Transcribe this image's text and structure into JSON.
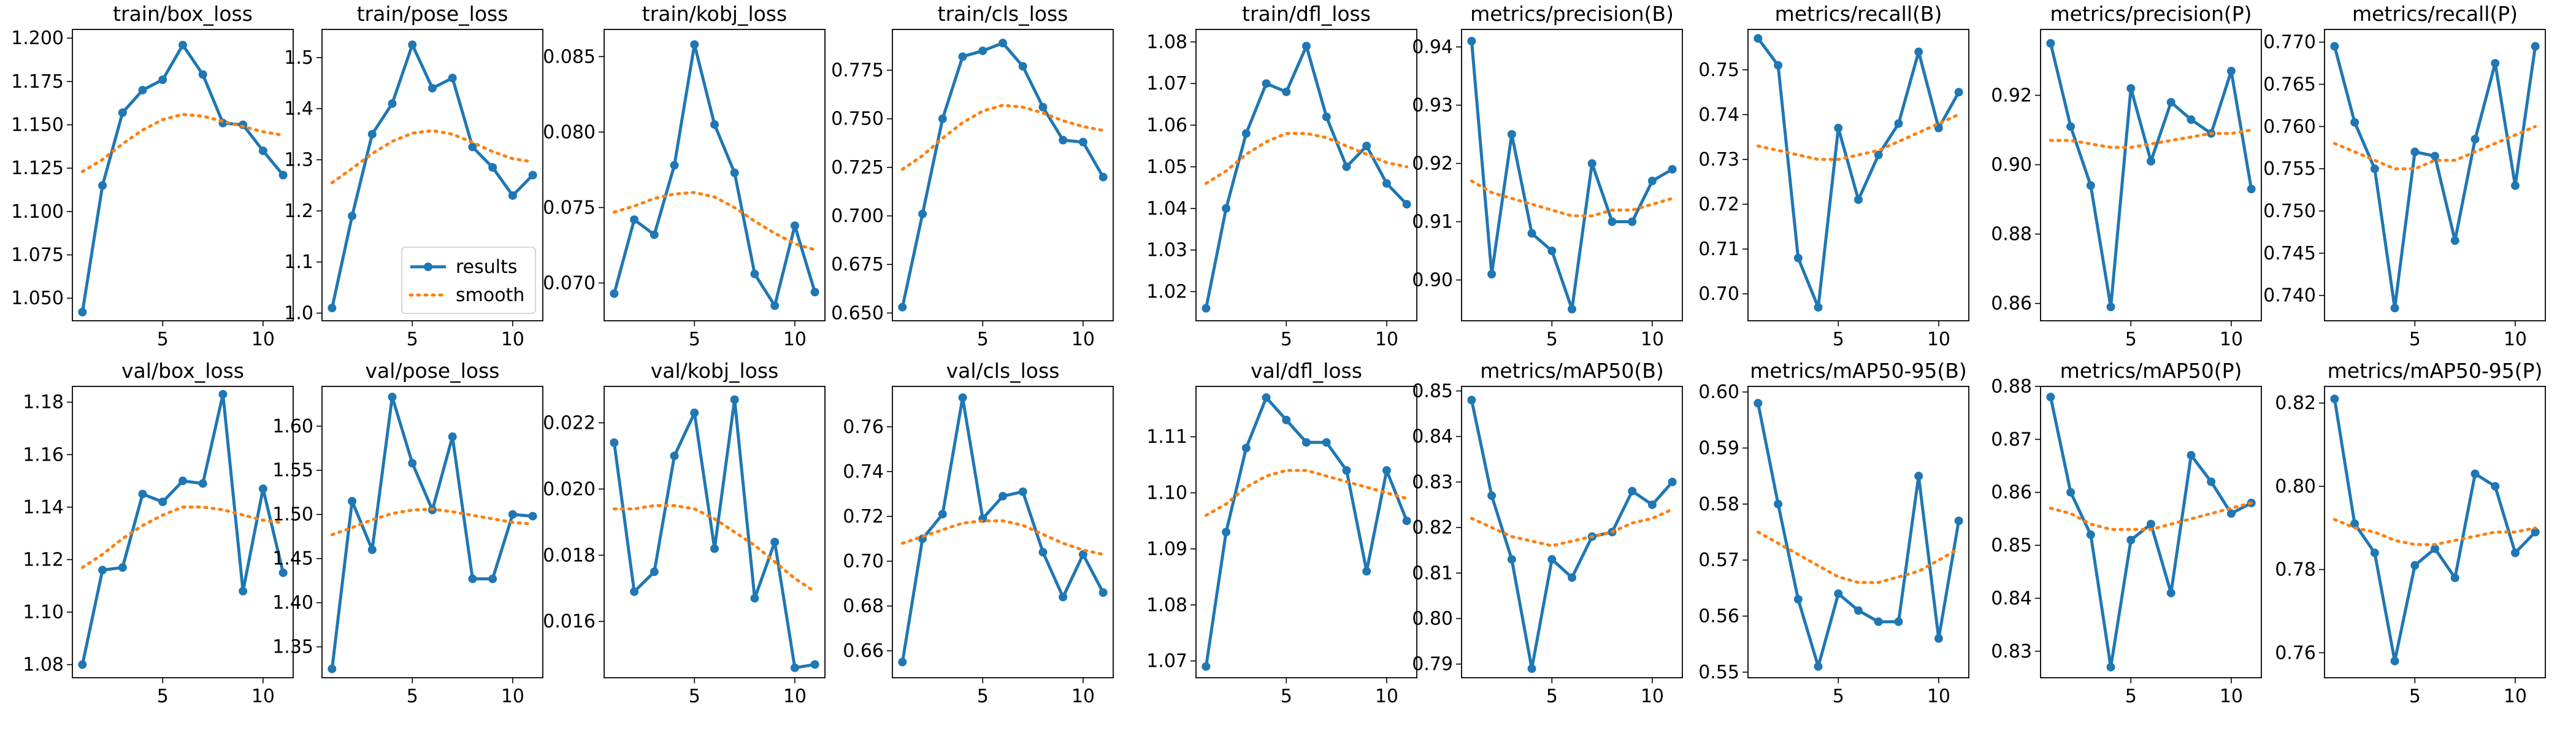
{
  "colors": {
    "results": "#1f77b4",
    "smooth": "#ff7f0e"
  },
  "legend": {
    "panel": "train/pose_loss",
    "placement": "lower-right",
    "items": [
      "results",
      "smooth"
    ]
  },
  "chart_data": [
    {
      "type": "line",
      "title": "train/box_loss",
      "x": [
        1,
        2,
        3,
        4,
        5,
        6,
        7,
        8,
        9,
        10,
        11
      ],
      "series": [
        {
          "name": "results",
          "values": [
            1.042,
            1.115,
            1.157,
            1.17,
            1.176,
            1.196,
            1.179,
            1.151,
            1.15,
            1.135,
            1.121
          ]
        },
        {
          "name": "smooth",
          "values": [
            1.123,
            1.13,
            1.139,
            1.147,
            1.153,
            1.156,
            1.155,
            1.152,
            1.149,
            1.146,
            1.144
          ]
        }
      ],
      "xticks": [
        5,
        10
      ],
      "yticks": [
        "1.050",
        "1.075",
        "1.100",
        "1.125",
        "1.150",
        "1.175",
        "1.200"
      ],
      "ylim": [
        1.037,
        1.205
      ]
    },
    {
      "type": "line",
      "title": "train/pose_loss",
      "x": [
        1,
        2,
        3,
        4,
        5,
        6,
        7,
        8,
        9,
        10,
        11
      ],
      "series": [
        {
          "name": "results",
          "values": [
            1.01,
            1.19,
            1.35,
            1.41,
            1.525,
            1.44,
            1.46,
            1.325,
            1.285,
            1.23,
            1.27
          ]
        },
        {
          "name": "smooth",
          "values": [
            1.255,
            1.283,
            1.312,
            1.336,
            1.352,
            1.357,
            1.35,
            1.334,
            1.316,
            1.302,
            1.296
          ]
        }
      ],
      "xticks": [
        5,
        10
      ],
      "yticks": [
        "1.0",
        "1.1",
        "1.2",
        "1.3",
        "1.4",
        "1.5"
      ],
      "ylim": [
        0.985,
        1.555
      ]
    },
    {
      "type": "line",
      "title": "train/kobj_loss",
      "x": [
        1,
        2,
        3,
        4,
        5,
        6,
        7,
        8,
        9,
        10,
        11
      ],
      "series": [
        {
          "name": "results",
          "values": [
            0.0693,
            0.0742,
            0.0732,
            0.0778,
            0.0858,
            0.0805,
            0.0773,
            0.0706,
            0.0685,
            0.0738,
            0.0694
          ]
        },
        {
          "name": "smooth",
          "values": [
            0.0747,
            0.0751,
            0.0756,
            0.0759,
            0.076,
            0.0757,
            0.075,
            0.0741,
            0.0733,
            0.0726,
            0.0722
          ]
        }
      ],
      "xticks": [
        5,
        10
      ],
      "yticks": [
        "0.070",
        "0.075",
        "0.080",
        "0.085"
      ],
      "ylim": [
        0.0675,
        0.0868
      ]
    },
    {
      "type": "line",
      "title": "train/cls_loss",
      "x": [
        1,
        2,
        3,
        4,
        5,
        6,
        7,
        8,
        9,
        10,
        11
      ],
      "series": [
        {
          "name": "results",
          "values": [
            0.653,
            0.701,
            0.75,
            0.782,
            0.785,
            0.789,
            0.777,
            0.756,
            0.739,
            0.738,
            0.72
          ]
        },
        {
          "name": "smooth",
          "values": [
            0.724,
            0.731,
            0.74,
            0.748,
            0.754,
            0.757,
            0.756,
            0.753,
            0.749,
            0.746,
            0.744
          ]
        }
      ],
      "xticks": [
        5,
        10
      ],
      "yticks": [
        "0.650",
        "0.675",
        "0.700",
        "0.725",
        "0.750",
        "0.775"
      ],
      "ylim": [
        0.646,
        0.796
      ]
    },
    {
      "type": "line",
      "title": "train/dfl_loss",
      "x": [
        1,
        2,
        3,
        4,
        5,
        6,
        7,
        8,
        9,
        10,
        11
      ],
      "series": [
        {
          "name": "results",
          "values": [
            1.016,
            1.04,
            1.058,
            1.07,
            1.068,
            1.079,
            1.062,
            1.05,
            1.055,
            1.046,
            1.041
          ]
        },
        {
          "name": "smooth",
          "values": [
            1.046,
            1.049,
            1.053,
            1.056,
            1.058,
            1.058,
            1.057,
            1.055,
            1.053,
            1.051,
            1.05
          ]
        }
      ],
      "xticks": [
        5,
        10
      ],
      "yticks": [
        "1.02",
        "1.03",
        "1.04",
        "1.05",
        "1.06",
        "1.07",
        "1.08"
      ],
      "ylim": [
        1.013,
        1.083
      ]
    },
    {
      "type": "line",
      "title": "metrics/precision(B)",
      "x": [
        1,
        2,
        3,
        4,
        5,
        6,
        7,
        8,
        9,
        10,
        11
      ],
      "series": [
        {
          "name": "results",
          "values": [
            0.941,
            0.901,
            0.925,
            0.908,
            0.905,
            0.895,
            0.92,
            0.91,
            0.91,
            0.917,
            0.919
          ]
        },
        {
          "name": "smooth",
          "values": [
            0.917,
            0.915,
            0.914,
            0.913,
            0.912,
            0.911,
            0.911,
            0.912,
            0.912,
            0.913,
            0.914
          ]
        }
      ],
      "xticks": [
        5,
        10
      ],
      "yticks": [
        "0.90",
        "0.91",
        "0.92",
        "0.93",
        "0.94"
      ],
      "ylim": [
        0.893,
        0.943
      ]
    },
    {
      "type": "line",
      "title": "metrics/recall(B)",
      "x": [
        1,
        2,
        3,
        4,
        5,
        6,
        7,
        8,
        9,
        10,
        11
      ],
      "series": [
        {
          "name": "results",
          "values": [
            0.757,
            0.751,
            0.708,
            0.697,
            0.737,
            0.721,
            0.731,
            0.738,
            0.754,
            0.737,
            0.745
          ]
        },
        {
          "name": "smooth",
          "values": [
            0.733,
            0.732,
            0.731,
            0.73,
            0.73,
            0.731,
            0.732,
            0.734,
            0.736,
            0.738,
            0.74
          ]
        }
      ],
      "xticks": [
        5,
        10
      ],
      "yticks": [
        "0.70",
        "0.71",
        "0.72",
        "0.73",
        "0.74",
        "0.75"
      ],
      "ylim": [
        0.694,
        0.759
      ]
    },
    {
      "type": "line",
      "title": "metrics/precision(P)",
      "x": [
        1,
        2,
        3,
        4,
        5,
        6,
        7,
        8,
        9,
        10,
        11
      ],
      "series": [
        {
          "name": "results",
          "values": [
            0.935,
            0.911,
            0.894,
            0.859,
            0.922,
            0.901,
            0.918,
            0.913,
            0.909,
            0.927,
            0.893
          ]
        },
        {
          "name": "smooth",
          "values": [
            0.907,
            0.907,
            0.906,
            0.905,
            0.905,
            0.906,
            0.907,
            0.908,
            0.909,
            0.909,
            0.91
          ]
        }
      ],
      "xticks": [
        5,
        10
      ],
      "yticks": [
        "0.86",
        "0.88",
        "0.90",
        "0.92"
      ],
      "ylim": [
        0.855,
        0.939
      ]
    },
    {
      "type": "line",
      "title": "metrics/recall(P)",
      "x": [
        1,
        2,
        3,
        4,
        5,
        6,
        7,
        8,
        9,
        10,
        11
      ],
      "series": [
        {
          "name": "results",
          "values": [
            0.7695,
            0.7605,
            0.755,
            0.7385,
            0.757,
            0.7565,
            0.7465,
            0.7585,
            0.7675,
            0.753,
            0.7695
          ]
        },
        {
          "name": "smooth",
          "values": [
            0.758,
            0.757,
            0.756,
            0.755,
            0.755,
            0.756,
            0.756,
            0.757,
            0.758,
            0.759,
            0.76
          ]
        }
      ],
      "xticks": [
        5,
        10
      ],
      "yticks": [
        "0.740",
        "0.745",
        "0.750",
        "0.755",
        "0.760",
        "0.765",
        "0.770"
      ],
      "ylim": [
        0.737,
        0.7715
      ]
    },
    {
      "type": "line",
      "title": "val/box_loss",
      "x": [
        1,
        2,
        3,
        4,
        5,
        6,
        7,
        8,
        9,
        10,
        11
      ],
      "series": [
        {
          "name": "results",
          "values": [
            1.08,
            1.116,
            1.117,
            1.145,
            1.142,
            1.15,
            1.149,
            1.183,
            1.108,
            1.147,
            1.115
          ]
        },
        {
          "name": "smooth",
          "values": [
            1.117,
            1.122,
            1.128,
            1.133,
            1.137,
            1.14,
            1.14,
            1.139,
            1.137,
            1.135,
            1.134
          ]
        }
      ],
      "xticks": [
        5,
        10
      ],
      "yticks": [
        "1.08",
        "1.10",
        "1.12",
        "1.14",
        "1.16",
        "1.18"
      ],
      "ylim": [
        1.075,
        1.186
      ]
    },
    {
      "type": "line",
      "title": "val/pose_loss",
      "x": [
        1,
        2,
        3,
        4,
        5,
        6,
        7,
        8,
        9,
        10,
        11
      ],
      "series": [
        {
          "name": "results",
          "values": [
            1.325,
            1.515,
            1.46,
            1.633,
            1.558,
            1.505,
            1.588,
            1.427,
            1.427,
            1.5,
            1.498
          ]
        },
        {
          "name": "smooth",
          "values": [
            1.477,
            1.485,
            1.494,
            1.501,
            1.505,
            1.506,
            1.503,
            1.499,
            1.495,
            1.491,
            1.489
          ]
        }
      ],
      "xticks": [
        5,
        10
      ],
      "yticks": [
        "1.35",
        "1.40",
        "1.45",
        "1.50",
        "1.55",
        "1.60"
      ],
      "ylim": [
        1.315,
        1.645
      ]
    },
    {
      "type": "line",
      "title": "val/kobj_loss",
      "x": [
        1,
        2,
        3,
        4,
        5,
        6,
        7,
        8,
        9,
        10,
        11
      ],
      "series": [
        {
          "name": "results",
          "values": [
            0.0214,
            0.0169,
            0.0175,
            0.021,
            0.0223,
            0.0182,
            0.0227,
            0.0167,
            0.0184,
            0.0146,
            0.0147
          ]
        },
        {
          "name": "smooth",
          "values": [
            0.0194,
            0.0194,
            0.0195,
            0.0195,
            0.0194,
            0.0191,
            0.0187,
            0.0183,
            0.0178,
            0.0173,
            0.0169
          ]
        }
      ],
      "xticks": [
        5,
        10
      ],
      "yticks": [
        "0.016",
        "0.018",
        "0.020",
        "0.022"
      ],
      "ylim": [
        0.0143,
        0.0231
      ]
    },
    {
      "type": "line",
      "title": "val/cls_loss",
      "x": [
        1,
        2,
        3,
        4,
        5,
        6,
        7,
        8,
        9,
        10,
        11
      ],
      "series": [
        {
          "name": "results",
          "values": [
            0.655,
            0.71,
            0.721,
            0.773,
            0.719,
            0.729,
            0.731,
            0.704,
            0.684,
            0.703,
            0.686
          ]
        },
        {
          "name": "smooth",
          "values": [
            0.708,
            0.711,
            0.714,
            0.717,
            0.718,
            0.718,
            0.716,
            0.712,
            0.708,
            0.705,
            0.703
          ]
        }
      ],
      "xticks": [
        5,
        10
      ],
      "yticks": [
        "0.66",
        "0.68",
        "0.70",
        "0.72",
        "0.74",
        "0.76"
      ],
      "ylim": [
        0.648,
        0.778
      ]
    },
    {
      "type": "line",
      "title": "val/dfl_loss",
      "x": [
        1,
        2,
        3,
        4,
        5,
        6,
        7,
        8,
        9,
        10,
        11
      ],
      "series": [
        {
          "name": "results",
          "values": [
            1.069,
            1.093,
            1.108,
            1.117,
            1.113,
            1.109,
            1.109,
            1.104,
            1.086,
            1.104,
            1.095
          ]
        },
        {
          "name": "smooth",
          "values": [
            1.096,
            1.098,
            1.101,
            1.103,
            1.104,
            1.104,
            1.103,
            1.102,
            1.101,
            1.1,
            1.099
          ]
        }
      ],
      "xticks": [
        5,
        10
      ],
      "yticks": [
        "1.07",
        "1.08",
        "1.09",
        "1.10",
        "1.11"
      ],
      "ylim": [
        1.067,
        1.119
      ]
    },
    {
      "type": "line",
      "title": "metrics/mAP50(B)",
      "x": [
        1,
        2,
        3,
        4,
        5,
        6,
        7,
        8,
        9,
        10,
        11
      ],
      "series": [
        {
          "name": "results",
          "values": [
            0.848,
            0.827,
            0.813,
            0.789,
            0.813,
            0.809,
            0.818,
            0.819,
            0.828,
            0.825,
            0.83
          ]
        },
        {
          "name": "smooth",
          "values": [
            0.822,
            0.82,
            0.818,
            0.817,
            0.816,
            0.817,
            0.818,
            0.819,
            0.821,
            0.822,
            0.824
          ]
        }
      ],
      "xticks": [
        5,
        10
      ],
      "yticks": [
        "0.79",
        "0.80",
        "0.81",
        "0.82",
        "0.83",
        "0.84",
        "0.85"
      ],
      "ylim": [
        0.787,
        0.851
      ]
    },
    {
      "type": "line",
      "title": "metrics/mAP50-95(B)",
      "x": [
        1,
        2,
        3,
        4,
        5,
        6,
        7,
        8,
        9,
        10,
        11
      ],
      "series": [
        {
          "name": "results",
          "values": [
            0.598,
            0.58,
            0.563,
            0.551,
            0.564,
            0.561,
            0.559,
            0.559,
            0.585,
            0.556,
            0.577
          ]
        },
        {
          "name": "smooth",
          "values": [
            0.575,
            0.573,
            0.571,
            0.569,
            0.567,
            0.566,
            0.566,
            0.567,
            0.568,
            0.57,
            0.572
          ]
        }
      ],
      "xticks": [
        5,
        10
      ],
      "yticks": [
        "0.55",
        "0.56",
        "0.57",
        "0.58",
        "0.59",
        "0.60"
      ],
      "ylim": [
        0.549,
        0.601
      ]
    },
    {
      "type": "line",
      "title": "metrics/mAP50(P)",
      "x": [
        1,
        2,
        3,
        4,
        5,
        6,
        7,
        8,
        9,
        10,
        11
      ],
      "series": [
        {
          "name": "results",
          "values": [
            0.878,
            0.86,
            0.852,
            0.827,
            0.851,
            0.854,
            0.841,
            0.867,
            0.862,
            0.856,
            0.858
          ]
        },
        {
          "name": "smooth",
          "values": [
            0.857,
            0.856,
            0.854,
            0.853,
            0.853,
            0.853,
            0.854,
            0.855,
            0.856,
            0.857,
            0.858
          ]
        }
      ],
      "xticks": [
        5,
        10
      ],
      "yticks": [
        "0.83",
        "0.84",
        "0.85",
        "0.86",
        "0.87",
        "0.88"
      ],
      "ylim": [
        0.825,
        0.88
      ]
    },
    {
      "type": "line",
      "title": "metrics/mAP50-95(P)",
      "x": [
        1,
        2,
        3,
        4,
        5,
        6,
        7,
        8,
        9,
        10,
        11
      ],
      "series": [
        {
          "name": "results",
          "values": [
            0.821,
            0.791,
            0.784,
            0.758,
            0.781,
            0.785,
            0.778,
            0.803,
            0.8,
            0.784,
            0.789
          ]
        },
        {
          "name": "smooth",
          "values": [
            0.792,
            0.79,
            0.789,
            0.787,
            0.786,
            0.786,
            0.787,
            0.788,
            0.789,
            0.789,
            0.79
          ]
        }
      ],
      "xticks": [
        5,
        10
      ],
      "yticks": [
        "0.76",
        "0.78",
        "0.80",
        "0.82"
      ],
      "ylim": [
        0.754,
        0.824
      ]
    }
  ]
}
